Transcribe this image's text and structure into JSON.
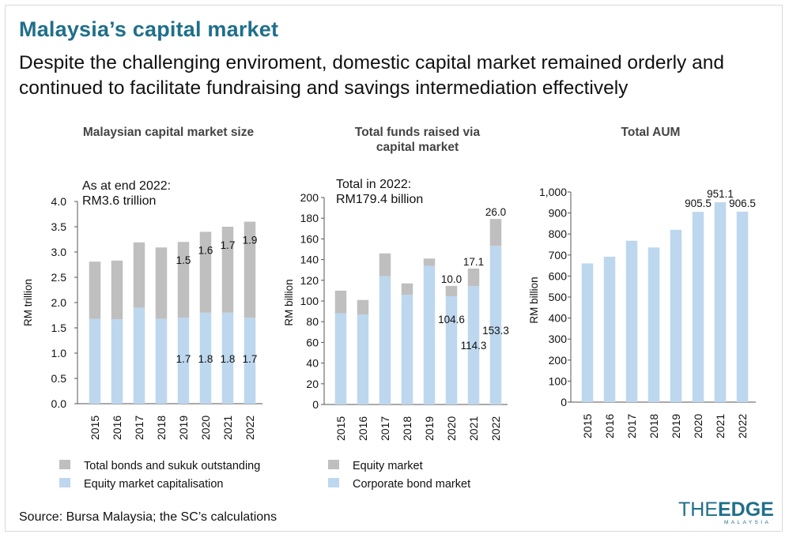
{
  "header": {
    "title": "Malaysia’s capital market",
    "subtitle": "Despite the challenging enviroment, domestic capital market remained orderly and continued to facilitate fundraising and savings intermediation effectively"
  },
  "colors": {
    "gray": "#bfbfbf",
    "blue": "#bdd7ee",
    "title": "#1f6f8b"
  },
  "chart_data": [
    {
      "type": "bar",
      "title": "Malaysian capital market size",
      "annotation": [
        "As at end 2022:",
        "RM3.6 trillion"
      ],
      "ylabel": "RM trillion",
      "ylim": [
        0,
        4.0
      ],
      "yticks": [
        "0.0",
        "0.5",
        "1.0",
        "1.5",
        "2.0",
        "2.5",
        "3.0",
        "3.5",
        "4.0"
      ],
      "categories": [
        "2015",
        "2016",
        "2017",
        "2018",
        "2019",
        "2020",
        "2021",
        "2022"
      ],
      "series": [
        {
          "name": "Equity market capitalisation",
          "values": [
            1.68,
            1.67,
            1.9,
            1.68,
            1.7,
            1.8,
            1.8,
            1.7
          ]
        },
        {
          "name": "Total bonds and sukuk outstanding",
          "values": [
            1.13,
            1.16,
            1.29,
            1.41,
            1.5,
            1.6,
            1.7,
            1.9
          ]
        }
      ],
      "data_labels": [
        {
          "category": "2019",
          "series": "Total bonds and sukuk outstanding",
          "text": "1.5"
        },
        {
          "category": "2020",
          "series": "Total bonds and sukuk outstanding",
          "text": "1.6"
        },
        {
          "category": "2021",
          "series": "Total bonds and sukuk outstanding",
          "text": "1.7"
        },
        {
          "category": "2022",
          "series": "Total bonds and sukuk outstanding",
          "text": "1.9"
        },
        {
          "category": "2019",
          "series": "Equity market capitalisation",
          "text": "1.7"
        },
        {
          "category": "2020",
          "series": "Equity market capitalisation",
          "text": "1.8"
        },
        {
          "category": "2021",
          "series": "Equity market capitalisation",
          "text": "1.8"
        },
        {
          "category": "2022",
          "series": "Equity market capitalisation",
          "text": "1.7"
        }
      ],
      "legend": [
        "Total bonds and sukuk outstanding",
        "Equity market capitalisation"
      ]
    },
    {
      "type": "bar",
      "title": [
        "Total funds raised via",
        "capital market"
      ],
      "annotation": [
        "Total in 2022:",
        "RM179.4 billion"
      ],
      "ylabel": "RM billion",
      "ylim": [
        0,
        200
      ],
      "yticks": [
        "0",
        "20",
        "40",
        "60",
        "80",
        "100",
        "120",
        "140",
        "160",
        "180",
        "200"
      ],
      "categories": [
        "2015",
        "2016",
        "2017",
        "2018",
        "2019",
        "2020",
        "2021",
        "2022"
      ],
      "series": [
        {
          "name": "Corporate bond market",
          "values": [
            88,
            87,
            124,
            106,
            134,
            104.6,
            114.3,
            153.3
          ]
        },
        {
          "name": "Equity market",
          "values": [
            22,
            14,
            22,
            11,
            7,
            10.0,
            17.1,
            26.0
          ]
        }
      ],
      "data_labels": [
        {
          "category": "2020",
          "series": "Equity market",
          "text": "10.0"
        },
        {
          "category": "2021",
          "series": "Equity market",
          "text": "17.1"
        },
        {
          "category": "2022",
          "series": "Equity market",
          "text": "26.0"
        },
        {
          "category": "2020",
          "series": "Corporate bond market",
          "text": "104.6"
        },
        {
          "category": "2021",
          "series": "Corporate bond market",
          "text": "114.3"
        },
        {
          "category": "2022",
          "series": "Corporate bond market",
          "text": "153.3"
        }
      ],
      "legend": [
        "Equity market",
        "Corporate bond market"
      ]
    },
    {
      "type": "bar",
      "title": "Total AUM",
      "ylabel": "RM billion",
      "ylim": [
        0,
        1000
      ],
      "yticks": [
        "0",
        "100",
        "200",
        "300",
        "400",
        "500",
        "600",
        "700",
        "800",
        "900",
        "1,000"
      ],
      "categories": [
        "2015",
        "2016",
        "2017",
        "2018",
        "2019",
        "2020",
        "2021",
        "2022"
      ],
      "series": [
        {
          "name": "Total AUM",
          "values": [
            660,
            692,
            768,
            736,
            820,
            905.5,
            951.1,
            906.5
          ]
        }
      ],
      "data_labels": [
        {
          "category": "2020",
          "series": "Total AUM",
          "text": "905.5"
        },
        {
          "category": "2021",
          "series": "Total AUM",
          "text": "951.1"
        },
        {
          "category": "2022",
          "series": "Total AUM",
          "text": "906.5"
        }
      ]
    }
  ],
  "footer": {
    "source": "Source: Bursa Malaysia; the SC’s calculations",
    "logo_the": "THE",
    "logo_edge": "EDGE",
    "logo_sub": "MALAYSIA"
  }
}
